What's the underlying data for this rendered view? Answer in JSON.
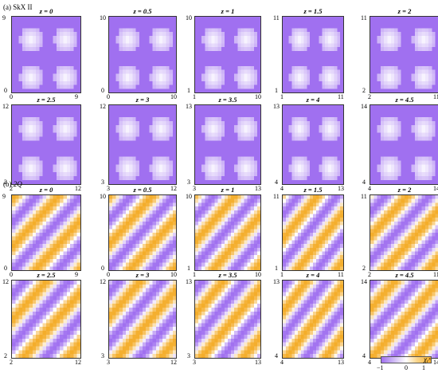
{
  "figure": {
    "sections": [
      {
        "id": "a",
        "label_prefix": "(a) ",
        "label_name": "SkX II",
        "pattern": "skyrmion",
        "panels": [
          {
            "z_label": "z = 0",
            "tick_min": "0",
            "tick_max": "9"
          },
          {
            "z_label": "z = 0.5",
            "tick_min": "0",
            "tick_max": "10"
          },
          {
            "z_label": "z = 1",
            "tick_min": "1",
            "tick_max": "10"
          },
          {
            "z_label": "z = 1.5",
            "tick_min": "1",
            "tick_max": "11"
          },
          {
            "z_label": "z = 2",
            "tick_min": "2",
            "tick_max": "11"
          },
          {
            "z_label": "z = 2.5",
            "tick_min": "2",
            "tick_max": "12"
          },
          {
            "z_label": "z = 3",
            "tick_min": "3",
            "tick_max": "12"
          },
          {
            "z_label": "z = 3.5",
            "tick_min": "3",
            "tick_max": "13"
          },
          {
            "z_label": "z = 4",
            "tick_min": "4",
            "tick_max": "13"
          },
          {
            "z_label": "z = 4.5",
            "tick_min": "4",
            "tick_max": "14"
          }
        ]
      },
      {
        "id": "b",
        "label_prefix": "(b) ",
        "label_name": "2Q",
        "pattern": "stripe",
        "panels": [
          {
            "z_label": "z = 0",
            "tick_min": "0",
            "tick_max": "9"
          },
          {
            "z_label": "z = 0.5",
            "tick_min": "0",
            "tick_max": "10"
          },
          {
            "z_label": "z = 1",
            "tick_min": "1",
            "tick_max": "10"
          },
          {
            "z_label": "z = 1.5",
            "tick_min": "1",
            "tick_max": "11"
          },
          {
            "z_label": "z = 2",
            "tick_min": "2",
            "tick_max": "11"
          },
          {
            "z_label": "z = 2.5",
            "tick_min": "2",
            "tick_max": "12"
          },
          {
            "z_label": "z = 3",
            "tick_min": "3",
            "tick_max": "12"
          },
          {
            "z_label": "z = 3.5",
            "tick_min": "3",
            "tick_max": "13"
          },
          {
            "z_label": "z = 4",
            "tick_min": "4",
            "tick_max": "13"
          },
          {
            "z_label": "z = 4.5",
            "tick_min": "4",
            "tick_max": "14"
          }
        ]
      }
    ],
    "colorbar": {
      "min_label": "−1",
      "mid_label": "0",
      "max_label": "1",
      "title": "χᵣˣ",
      "range": [
        -1,
        1
      ],
      "colors": {
        "negative": "#a070f0",
        "zero": "#ffffff",
        "positive": "#f4ad2a"
      }
    }
  }
}
